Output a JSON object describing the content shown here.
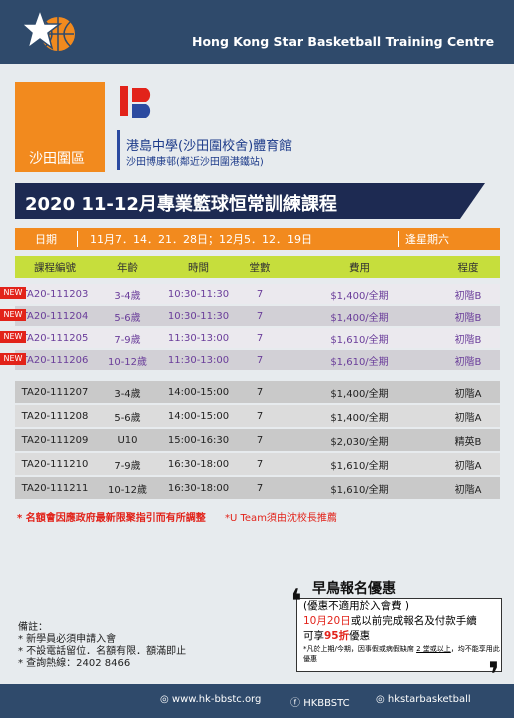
{
  "header": {
    "title": "Hong Kong Star Basketball Training Centre"
  },
  "location": {
    "district": "沙田圍區",
    "venue": "港島中學(沙田圍校舍)體育館",
    "address": "沙田博康邨(鄰近沙田圍港鐵站)"
  },
  "course_title": "2020 11-12月專業籃球恒常訓練課程",
  "dates": {
    "label": "日期",
    "dates": "11月7．14．21．28日；12月5．12．19日",
    "day": "逢星期六"
  },
  "table": {
    "headers": [
      "課程編號",
      "年齡",
      "時間",
      "堂數",
      "費用",
      "程度"
    ],
    "badges": [
      "NEW",
      "NEW",
      "NEW",
      "NEW"
    ],
    "rows": [
      [
        "TA20-111203",
        "3-4歲",
        "10:30-11:30",
        "7",
        "$1,400/全期",
        "初階B"
      ],
      [
        "TA20-111204",
        "5-6歲",
        "10:30-11:30",
        "7",
        "$1,400/全期",
        "初階B"
      ],
      [
        "TA20-111205",
        "7-9歲",
        "11:30-13:00",
        "7",
        "$1,610/全期",
        "初階B"
      ],
      [
        "TA20-111206",
        "10-12歲",
        "11:30-13:00",
        "7",
        "$1,610/全期",
        "初階B"
      ],
      [
        "TA20-111207",
        "3-4歲",
        "14:00-15:00",
        "7",
        "$1,400/全期",
        "初階A"
      ],
      [
        "TA20-111208",
        "5-6歲",
        "14:00-15:00",
        "7",
        "$1,400/全期",
        "初階A"
      ],
      [
        "TA20-111209",
        "U10",
        "15:00-16:30",
        "7",
        "$2,030/全期",
        "精英B"
      ],
      [
        "TA20-111210",
        "7-9歲",
        "16:30-18:00",
        "7",
        "$1,610/全期",
        "初階A"
      ],
      [
        "TA20-111211",
        "10-12歲",
        "16:30-18:00",
        "7",
        "$1,610/全期",
        "初階A"
      ]
    ]
  },
  "notes": [
    "* 名額會因應政府最新限聚指引而有所調整",
    "*U Team須由沈校長推薦"
  ],
  "remarks": {
    "title": "備註：",
    "items": [
      "* 新學員必須申請入會",
      "* 不設電話留位．名額有限．額滿即止",
      "* 查詢熱線：2402 8466"
    ]
  },
  "early_bird": {
    "title": "早鳥報名優惠",
    "line1": "(優惠不適用於入會費 )",
    "deadline": "10月20日",
    "line2_rest": "或以前完成報名及付款手續",
    "line3_pre": "可享",
    "discount": "95折",
    "line3_post": "優惠",
    "fine_pre": "*凡於上期/今期，因事假或病假缺席",
    "fine_underline": "2 堂或以上",
    "fine_post": "，均不能享用此優惠"
  },
  "footer": {
    "website": "www.hk-bbstc.org",
    "facebook": "HKBBSTC",
    "instagram": "hkstarbasketball"
  }
}
